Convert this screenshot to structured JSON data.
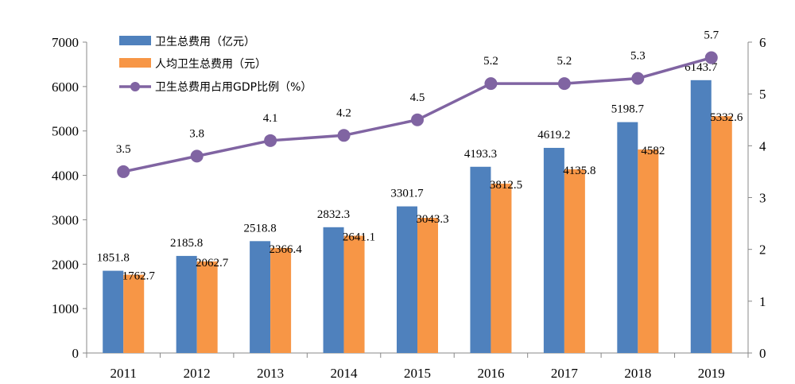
{
  "chart_data": {
    "type": "bar",
    "categories": [
      "2011",
      "2012",
      "2013",
      "2014",
      "2015",
      "2016",
      "2017",
      "2018",
      "2019"
    ],
    "series": [
      {
        "name": "卫生总费用（亿元）",
        "kind": "bar",
        "axis": "left",
        "color": "#4f81bd",
        "values": [
          1851.8,
          2185.8,
          2518.8,
          2832.3,
          3301.7,
          4193.3,
          4619.2,
          5198.7,
          6143.7
        ]
      },
      {
        "name": "人均卫生总费用（元）",
        "kind": "bar",
        "axis": "left",
        "color": "#f79646",
        "values": [
          1762.7,
          2062.7,
          2366.4,
          2641.1,
          3043.3,
          3812.5,
          4135.8,
          4582.0,
          5332.6
        ]
      },
      {
        "name": "卫生总费用占用GDP比例（%）",
        "kind": "line",
        "axis": "right",
        "color": "#8064a2",
        "values": [
          3.5,
          3.8,
          4.1,
          4.2,
          4.5,
          5.2,
          5.2,
          5.3,
          5.7
        ]
      }
    ],
    "ylim": [
      0,
      7000
    ],
    "yticks": [
      0,
      1000,
      2000,
      3000,
      4000,
      5000,
      6000,
      7000
    ],
    "y2lim": [
      0,
      6
    ],
    "y2ticks": [
      0,
      1,
      2,
      3,
      4,
      5,
      6
    ],
    "legend": "top-left",
    "grid": false
  }
}
